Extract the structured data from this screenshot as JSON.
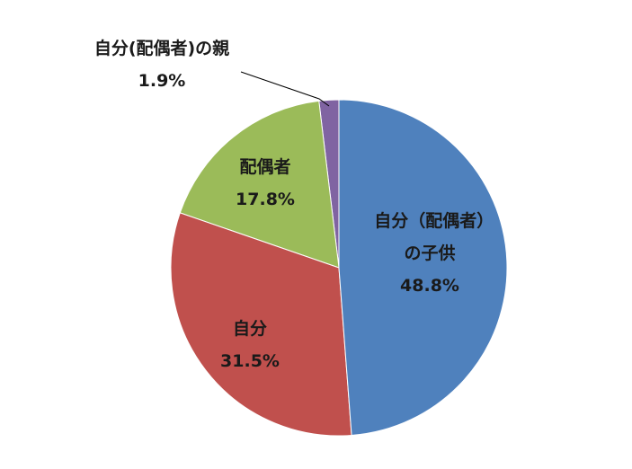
{
  "chart_data": {
    "type": "pie",
    "categories": [
      "自分（配偶者）の子供",
      "自分",
      "配偶者",
      "自分(配偶者)の親"
    ],
    "values": [
      48.8,
      31.5,
      17.8,
      1.9
    ],
    "value_labels": [
      "48.8%",
      "31.5%",
      "17.8%",
      "1.9%"
    ],
    "colors": [
      "#4f81bd",
      "#c0504d",
      "#9bbb59",
      "#8064a2"
    ]
  }
}
